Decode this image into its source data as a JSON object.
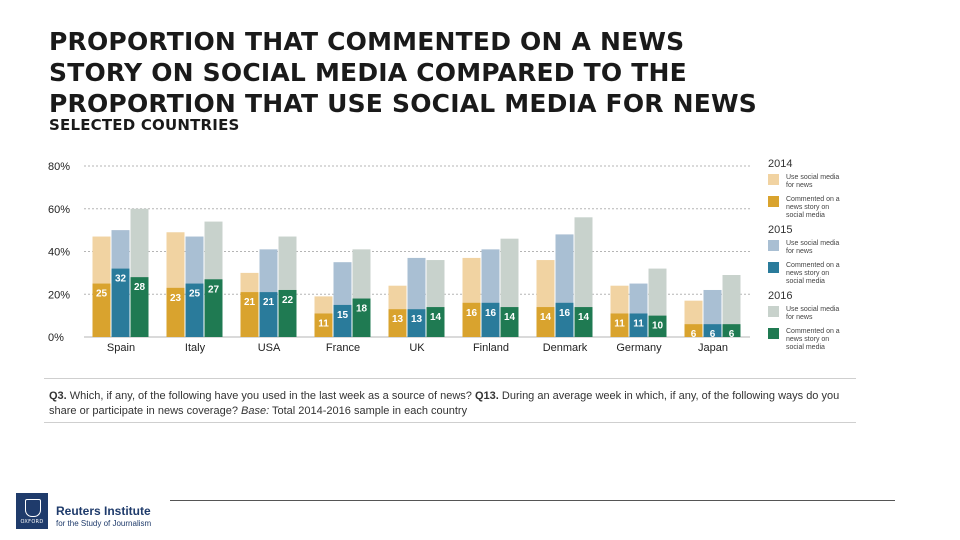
{
  "title_lines": [
    "PROPORTION THAT COMMENTED ON A NEWS",
    "STORY ON SOCIAL MEDIA COMPARED TO THE",
    "PROPORTION THAT USE SOCIAL MEDIA FOR NEWS"
  ],
  "subtitle": "SELECTED COUNTRIES",
  "chart_data": {
    "type": "bar",
    "categories": [
      "Spain",
      "Italy",
      "USA",
      "France",
      "UK",
      "Finland",
      "Denmark",
      "Germany",
      "Japan"
    ],
    "y_ticks": [
      "0%",
      "20%",
      "40%",
      "60%",
      "80%"
    ],
    "ylim": [
      0,
      80
    ],
    "grid": true,
    "legend_position": "right",
    "years": [
      {
        "year": "2014",
        "use_label": "Use social media for news",
        "commented_label": "Commented on a news story on social media",
        "use_color": "#f1d3a2",
        "commented_color": "#d9a32e",
        "use_values": [
          47,
          49,
          30,
          19,
          24,
          37,
          36,
          24,
          17
        ],
        "commented_values": [
          25,
          23,
          21,
          11,
          13,
          16,
          14,
          11,
          6
        ]
      },
      {
        "year": "2015",
        "use_label": "Use social media for news",
        "commented_label": "Commented on a news story on social media",
        "use_color": "#a9bfd3",
        "commented_color": "#2a7b9b",
        "use_values": [
          50,
          47,
          41,
          35,
          37,
          41,
          48,
          25,
          22
        ],
        "commented_values": [
          32,
          25,
          21,
          15,
          13,
          16,
          16,
          11,
          6
        ]
      },
      {
        "year": "2016",
        "use_label": "Use social media for news",
        "commented_label": "Commented on a news story on social media",
        "use_color": "#c8d2cc",
        "commented_color": "#1f7a52",
        "use_values": [
          60,
          54,
          47,
          41,
          36,
          46,
          56,
          32,
          29
        ],
        "commented_values": [
          28,
          27,
          22,
          18,
          14,
          14,
          14,
          10,
          6
        ]
      }
    ]
  },
  "note": {
    "q3_label": "Q3.",
    "q3_text": " Which, if any, of the following have you used in the last week as a source of news? ",
    "q13_label": "Q13.",
    "q13_text": " During an average week in which, if any, of the following ways do you share or participate in news coverage? ",
    "base_label": "Base:",
    "base_text": " Total 2014-2016 sample in each country"
  },
  "footer": {
    "crest_text": "OXFORD",
    "logo_name": "Reuters Institute",
    "logo_sub": "for the Study of Journalism"
  }
}
